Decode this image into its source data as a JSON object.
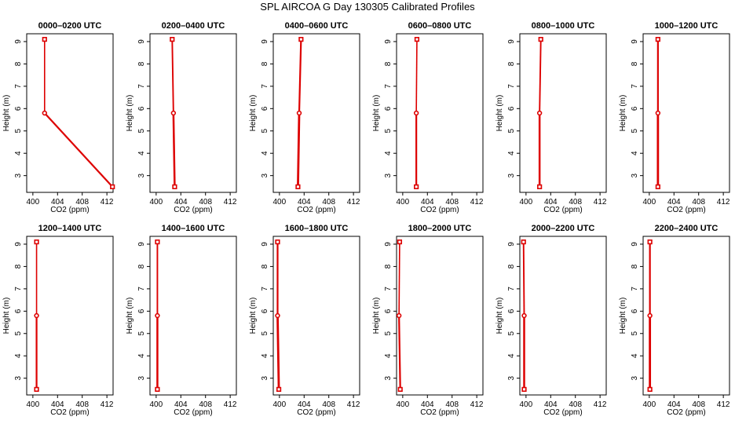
{
  "title": "SPL AIRCOA G  Day 130305  Calibrated Profiles",
  "colors": {
    "line": "#dd0000",
    "frame": "#000000",
    "background": "#ffffff"
  },
  "chart_data": {
    "type": "line",
    "layout": "2x6 small multiples",
    "xlabel": "CO2 (ppm)",
    "ylabel": "Height (m)",
    "xlim": [
      399,
      413
    ],
    "ylim": [
      2.25,
      9.35
    ],
    "xticks": [
      400,
      404,
      408,
      412
    ],
    "yticks": [
      3,
      4,
      5,
      6,
      7,
      8,
      9
    ],
    "grid": false,
    "panels": [
      {
        "title": "0000–0200 UTC",
        "x": [
          412.9,
          401.9,
          401.9
        ],
        "y": [
          2.5,
          5.8,
          9.1
        ]
      },
      {
        "title": "0200–0400 UTC",
        "x": [
          403.0,
          402.8,
          402.6
        ],
        "y": [
          2.5,
          5.8,
          9.1
        ]
      },
      {
        "title": "0400–0600 UTC",
        "x": [
          403.0,
          403.2,
          403.5
        ],
        "y": [
          2.5,
          5.8,
          9.1
        ]
      },
      {
        "title": "0600–0800 UTC",
        "x": [
          402.2,
          402.2,
          402.3
        ],
        "y": [
          2.5,
          5.8,
          9.1
        ]
      },
      {
        "title": "0800–1000 UTC",
        "x": [
          402.2,
          402.2,
          402.4
        ],
        "y": [
          2.5,
          5.8,
          9.1
        ]
      },
      {
        "title": "1000–1200 UTC",
        "x": [
          401.4,
          401.4,
          401.4
        ],
        "y": [
          2.5,
          5.8,
          9.1
        ]
      },
      {
        "title": "1200–1400 UTC",
        "x": [
          400.6,
          400.6,
          400.6
        ],
        "y": [
          2.5,
          5.8,
          9.1
        ]
      },
      {
        "title": "1400–1600 UTC",
        "x": [
          400.2,
          400.2,
          400.2
        ],
        "y": [
          2.5,
          5.8,
          9.1
        ]
      },
      {
        "title": "1600–1800 UTC",
        "x": [
          399.9,
          399.7,
          399.7
        ],
        "y": [
          2.5,
          5.8,
          9.1
        ]
      },
      {
        "title": "1800–2000 UTC",
        "x": [
          399.6,
          399.4,
          399.5
        ],
        "y": [
          2.5,
          5.8,
          9.1
        ]
      },
      {
        "title": "2000–2200 UTC",
        "x": [
          399.7,
          399.7,
          399.6
        ],
        "y": [
          2.5,
          5.8,
          9.1
        ]
      },
      {
        "title": "2200–2400 UTC",
        "x": [
          400.1,
          400.1,
          400.1
        ],
        "y": [
          2.5,
          5.8,
          9.1
        ]
      }
    ]
  }
}
